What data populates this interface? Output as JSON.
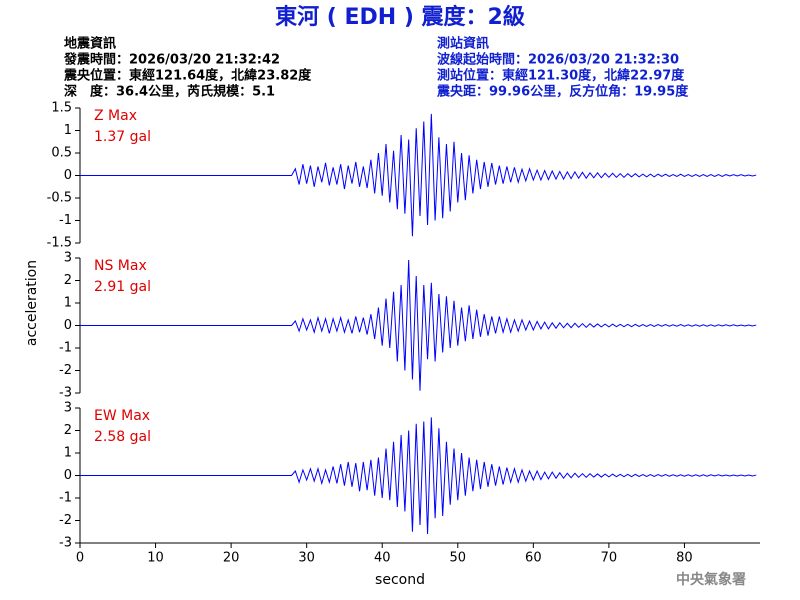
{
  "chart_data": {
    "type": "line",
    "title": "東河 ( EDH ) 震度：2級",
    "info_left": [
      "地震資訊",
      "發震時間：2026/03/20 21:32:42",
      "震央位置：東經121.64度，北緯23.82度",
      "深　度：36.4公里，芮氏規模：5.1"
    ],
    "info_right": [
      "測站資訊",
      "波線起始時間：2026/03/20 21:32:30",
      "測站位置：東經121.30度，北緯22.97度",
      "震央距：99.96公里，反方位角：19.95度"
    ],
    "xlabel": "second",
    "ylabel": "acceleration",
    "footer": "中央氣象署",
    "xlim": [
      0,
      90
    ],
    "xticks": [
      0,
      10,
      20,
      30,
      40,
      50,
      60,
      70,
      80
    ],
    "x": [
      0,
      28,
      28.5,
      29,
      29.5,
      30,
      30.5,
      31,
      31.5,
      32,
      32.5,
      33,
      33.5,
      34,
      34.5,
      35,
      35.5,
      36,
      36.5,
      37,
      37.5,
      38,
      38.5,
      39,
      39.5,
      40,
      40.5,
      41,
      41.5,
      42,
      42.5,
      43,
      43.5,
      44,
      44.5,
      45,
      45.5,
      46,
      46.5,
      47,
      47.5,
      48,
      48.5,
      49,
      49.5,
      50,
      50.5,
      51,
      51.5,
      52,
      52.5,
      53,
      53.5,
      54,
      54.5,
      55,
      55.5,
      56,
      56.5,
      57,
      57.5,
      58,
      58.5,
      59,
      59.5,
      60,
      60.5,
      61,
      61.5,
      62,
      62.5,
      63,
      63.5,
      64,
      64.5,
      65,
      65.5,
      66,
      66.5,
      67,
      67.5,
      68,
      68.5,
      69,
      69.5,
      70,
      70.5,
      71,
      71.5,
      72,
      72.5,
      73,
      73.5,
      74,
      74.5,
      75,
      75.5,
      76,
      76.5,
      77,
      77.5,
      78,
      78.5,
      79,
      79.5,
      80,
      80.5,
      81,
      81.5,
      82,
      82.5,
      83,
      83.5,
      84,
      84.5,
      85,
      85.5,
      86,
      86.5,
      87,
      87.5,
      88,
      88.5,
      89,
      89.5
    ],
    "series": [
      {
        "name": "Z Max",
        "max_label": "1.37 gal",
        "color": "#0000ff",
        "label_color": "#e00000",
        "ylim": [
          -1.5,
          1.5
        ],
        "yticks": [
          -1.5,
          -1,
          -0.5,
          0,
          0.5,
          1,
          1.5
        ],
        "values": [
          0,
          0,
          0.15,
          -0.2,
          0.25,
          -0.18,
          0.22,
          -0.25,
          0.2,
          -0.15,
          0.28,
          -0.22,
          0.18,
          -0.2,
          0.25,
          -0.3,
          0.22,
          -0.18,
          0.3,
          -0.25,
          0.2,
          -0.28,
          0.35,
          -0.4,
          0.5,
          -0.45,
          0.7,
          -0.6,
          0.55,
          -0.75,
          0.9,
          -0.85,
          0.8,
          -1.35,
          1.05,
          -0.9,
          1.2,
          -1.1,
          1.37,
          -1.0,
          0.85,
          -0.95,
          0.7,
          -0.8,
          0.75,
          -0.6,
          0.5,
          -0.55,
          0.45,
          -0.4,
          0.35,
          -0.3,
          0.3,
          -0.25,
          0.28,
          -0.2,
          0.22,
          -0.18,
          0.2,
          -0.15,
          0.18,
          -0.15,
          0.14,
          -0.12,
          0.15,
          -0.1,
          0.12,
          -0.1,
          0.11,
          -0.09,
          0.1,
          -0.08,
          0.09,
          -0.08,
          0.08,
          -0.07,
          0.08,
          -0.06,
          0.07,
          -0.06,
          0.06,
          -0.05,
          0.06,
          -0.05,
          0.05,
          -0.04,
          0.05,
          -0.04,
          0.04,
          -0.04,
          0.04,
          -0.03,
          0.04,
          -0.03,
          0.03,
          -0.03,
          0.03,
          -0.03,
          0.03,
          -0.02,
          0.03,
          -0.02,
          0.02,
          -0.02,
          0.03,
          -0.02,
          0.02,
          -0.02,
          0.02,
          -0.02,
          0.02,
          -0.02,
          0.02,
          -0.02,
          0.02,
          -0.02,
          0.02,
          -0.01,
          0.02,
          -0.01,
          0.02,
          -0.01,
          0.01,
          -0.01,
          0.01
        ]
      },
      {
        "name": "NS Max",
        "max_label": "2.91 gal",
        "color": "#0000ff",
        "label_color": "#e00000",
        "ylim": [
          -3,
          3
        ],
        "yticks": [
          -3,
          -2,
          -1,
          0,
          1,
          2,
          3
        ],
        "values": [
          0,
          0,
          0.2,
          -0.25,
          0.3,
          -0.2,
          0.25,
          -0.3,
          0.35,
          -0.25,
          0.3,
          -0.35,
          0.3,
          -0.25,
          0.35,
          -0.3,
          0.25,
          -0.35,
          0.4,
          -0.3,
          0.35,
          -0.4,
          0.5,
          -0.6,
          0.8,
          -0.9,
          1.2,
          -1.0,
          1.5,
          -1.6,
          1.8,
          -2.0,
          2.91,
          -2.4,
          2.2,
          -2.9,
          1.8,
          -1.5,
          1.9,
          -1.6,
          1.4,
          -1.2,
          1.3,
          -1.0,
          1.1,
          -0.9,
          0.8,
          -0.7,
          0.9,
          -0.6,
          0.7,
          -0.5,
          0.5,
          -0.45,
          0.4,
          -0.35,
          0.4,
          -0.3,
          0.3,
          -0.3,
          0.25,
          -0.25,
          0.25,
          -0.2,
          0.2,
          -0.2,
          0.18,
          -0.15,
          0.15,
          -0.15,
          0.12,
          -0.12,
          0.12,
          -0.1,
          0.1,
          -0.1,
          0.1,
          -0.08,
          0.08,
          -0.08,
          0.08,
          -0.07,
          0.07,
          -0.06,
          0.06,
          -0.06,
          0.06,
          -0.05,
          0.05,
          -0.05,
          0.05,
          -0.05,
          0.05,
          -0.04,
          0.04,
          -0.04,
          0.04,
          -0.04,
          0.04,
          -0.03,
          0.04,
          -0.03,
          0.03,
          -0.03,
          0.04,
          -0.03,
          0.03,
          -0.03,
          0.03,
          -0.03,
          0.03,
          -0.03,
          0.03,
          -0.03,
          0.03,
          -0.02,
          0.03,
          -0.02,
          0.03,
          -0.02,
          0.02,
          -0.02,
          0.02,
          -0.02,
          0.02
        ]
      },
      {
        "name": "EW Max",
        "max_label": "2.58 gal",
        "color": "#0000ff",
        "label_color": "#e00000",
        "ylim": [
          -3,
          3
        ],
        "yticks": [
          -3,
          -2,
          -1,
          0,
          1,
          2,
          3
        ],
        "values": [
          0,
          0,
          0.2,
          -0.3,
          0.25,
          -0.2,
          0.3,
          -0.25,
          0.3,
          -0.35,
          0.25,
          -0.3,
          0.4,
          -0.35,
          0.5,
          -0.45,
          0.6,
          -0.5,
          0.55,
          -0.7,
          0.6,
          -0.65,
          0.7,
          -0.9,
          0.8,
          -1.0,
          1.2,
          -1.1,
          1.5,
          -1.4,
          1.8,
          -1.6,
          2.0,
          -2.5,
          2.3,
          -2.2,
          2.4,
          -2.6,
          2.58,
          -1.9,
          2.1,
          -1.8,
          1.5,
          -1.3,
          1.2,
          -1.1,
          1.0,
          -0.9,
          0.8,
          -0.7,
          0.7,
          -0.6,
          0.6,
          -0.5,
          0.5,
          -0.45,
          0.4,
          -0.4,
          0.35,
          -0.3,
          0.3,
          -0.3,
          0.25,
          -0.25,
          0.2,
          -0.2,
          0.2,
          -0.18,
          0.15,
          -0.15,
          0.15,
          -0.12,
          0.12,
          -0.12,
          0.1,
          -0.1,
          0.1,
          -0.08,
          0.08,
          -0.08,
          0.08,
          -0.07,
          0.07,
          -0.07,
          0.06,
          -0.06,
          0.06,
          -0.05,
          0.05,
          -0.05,
          0.05,
          -0.05,
          0.05,
          -0.04,
          0.04,
          -0.04,
          0.04,
          -0.04,
          0.04,
          -0.03,
          0.04,
          -0.03,
          0.03,
          -0.03,
          0.03,
          -0.03,
          0.03,
          -0.03,
          0.03,
          -0.03,
          0.03,
          -0.03,
          0.03,
          -0.02,
          0.03,
          -0.02,
          0.02,
          -0.02,
          0.02,
          -0.02,
          0.02,
          -0.02,
          0.02,
          -0.02,
          0.02
        ]
      }
    ]
  }
}
